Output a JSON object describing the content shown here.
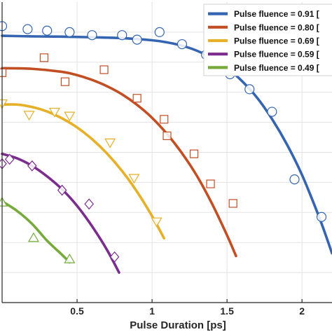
{
  "chart_data": {
    "type": "line",
    "xlabel": "Pulse Duration [ps]",
    "xlim": [
      0.0,
      2.2
    ],
    "ylim": [
      0.0,
      1.0
    ],
    "x_ticks": [
      {
        "value": 0.5,
        "label": "0.5"
      },
      {
        "value": 1.0,
        "label": "1"
      },
      {
        "value": 1.5,
        "label": "1.5"
      },
      {
        "value": 2.0,
        "label": "2"
      }
    ],
    "grid": true,
    "legend": "top-right",
    "series": [
      {
        "name": "Pulse fluence = 0.91 [",
        "color": "#3565b0",
        "marker": "circle",
        "points": [
          [
            0.0,
            0.92
          ],
          [
            0.17,
            0.91
          ],
          [
            0.3,
            0.905
          ],
          [
            0.45,
            0.9
          ],
          [
            0.6,
            0.89
          ],
          [
            0.8,
            0.89
          ],
          [
            0.9,
            0.875
          ],
          [
            1.05,
            0.9
          ],
          [
            1.2,
            0.86
          ],
          [
            1.36,
            0.825
          ],
          [
            1.52,
            0.76
          ],
          [
            1.65,
            0.71
          ],
          [
            1.8,
            0.635
          ],
          [
            1.95,
            0.41
          ],
          [
            2.13,
            0.285
          ]
        ],
        "curve": [
          [
            0.0,
            0.888
          ],
          [
            0.2,
            0.886
          ],
          [
            0.4,
            0.885
          ],
          [
            0.6,
            0.883
          ],
          [
            0.8,
            0.88
          ],
          [
            1.0,
            0.873
          ],
          [
            1.1,
            0.866
          ],
          [
            1.2,
            0.855
          ],
          [
            1.3,
            0.838
          ],
          [
            1.4,
            0.814
          ],
          [
            1.5,
            0.781
          ],
          [
            1.6,
            0.737
          ],
          [
            1.7,
            0.682
          ],
          [
            1.8,
            0.611
          ],
          [
            1.9,
            0.526
          ],
          [
            2.0,
            0.425
          ],
          [
            2.1,
            0.303
          ],
          [
            2.15,
            0.236
          ],
          [
            2.2,
            0.164
          ]
        ]
      },
      {
        "name": "Pulse fluence = 0.80 [",
        "color": "#c24f24",
        "marker": "square",
        "points": [
          [
            0.0,
            0.765
          ],
          [
            0.28,
            0.815
          ],
          [
            0.42,
            0.735
          ],
          [
            0.68,
            0.775
          ],
          [
            0.9,
            0.68
          ],
          [
            1.08,
            0.61
          ],
          [
            1.1,
            0.555
          ],
          [
            1.28,
            0.495
          ],
          [
            1.39,
            0.395
          ],
          [
            1.54,
            0.33
          ]
        ],
        "curve": [
          [
            0.0,
            0.78
          ],
          [
            0.2,
            0.778
          ],
          [
            0.4,
            0.768
          ],
          [
            0.5,
            0.757
          ],
          [
            0.6,
            0.741
          ],
          [
            0.7,
            0.72
          ],
          [
            0.8,
            0.693
          ],
          [
            0.9,
            0.658
          ],
          [
            1.0,
            0.615
          ],
          [
            1.1,
            0.561
          ],
          [
            1.2,
            0.497
          ],
          [
            1.3,
            0.421
          ],
          [
            1.4,
            0.329
          ],
          [
            1.5,
            0.224
          ],
          [
            1.56,
            0.155
          ]
        ]
      },
      {
        "name": "Pulse fluence = 0.69 [",
        "color": "#e6b028",
        "marker": "triangle-down",
        "points": [
          [
            0.0,
            0.663
          ],
          [
            0.18,
            0.625
          ],
          [
            0.35,
            0.635
          ],
          [
            0.45,
            0.622
          ],
          [
            0.72,
            0.533
          ],
          [
            0.88,
            0.415
          ],
          [
            1.03,
            0.27
          ]
        ],
        "curve": [
          [
            0.0,
            0.659
          ],
          [
            0.1,
            0.659
          ],
          [
            0.2,
            0.651
          ],
          [
            0.3,
            0.636
          ],
          [
            0.4,
            0.613
          ],
          [
            0.5,
            0.583
          ],
          [
            0.6,
            0.544
          ],
          [
            0.7,
            0.496
          ],
          [
            0.8,
            0.438
          ],
          [
            0.9,
            0.369
          ],
          [
            1.0,
            0.288
          ],
          [
            1.08,
            0.214
          ]
        ]
      },
      {
        "name": "Pulse fluence = 0.59 [",
        "color": "#7b2d8e",
        "marker": "diamond",
        "points": [
          [
            0.0,
            0.462
          ],
          [
            0.05,
            0.477
          ],
          [
            0.2,
            0.455
          ],
          [
            0.4,
            0.374
          ],
          [
            0.58,
            0.328
          ],
          [
            0.75,
            0.152
          ]
        ],
        "curve": [
          [
            0.0,
            0.495
          ],
          [
            0.1,
            0.48
          ],
          [
            0.2,
            0.455
          ],
          [
            0.3,
            0.42
          ],
          [
            0.4,
            0.377
          ],
          [
            0.5,
            0.322
          ],
          [
            0.6,
            0.254
          ],
          [
            0.7,
            0.175
          ],
          [
            0.78,
            0.1
          ]
        ]
      },
      {
        "name": "Pulse fluence = 0.49 [",
        "color": "#76ab3c",
        "marker": "triangle-up",
        "points": [
          [
            0.0,
            0.333
          ],
          [
            0.21,
            0.215
          ],
          [
            0.45,
            0.144
          ]
        ],
        "curve": [
          [
            0.0,
            0.337
          ],
          [
            0.1,
            0.305
          ],
          [
            0.2,
            0.262
          ],
          [
            0.3,
            0.206
          ],
          [
            0.4,
            0.159
          ],
          [
            0.45,
            0.134
          ]
        ]
      }
    ]
  }
}
